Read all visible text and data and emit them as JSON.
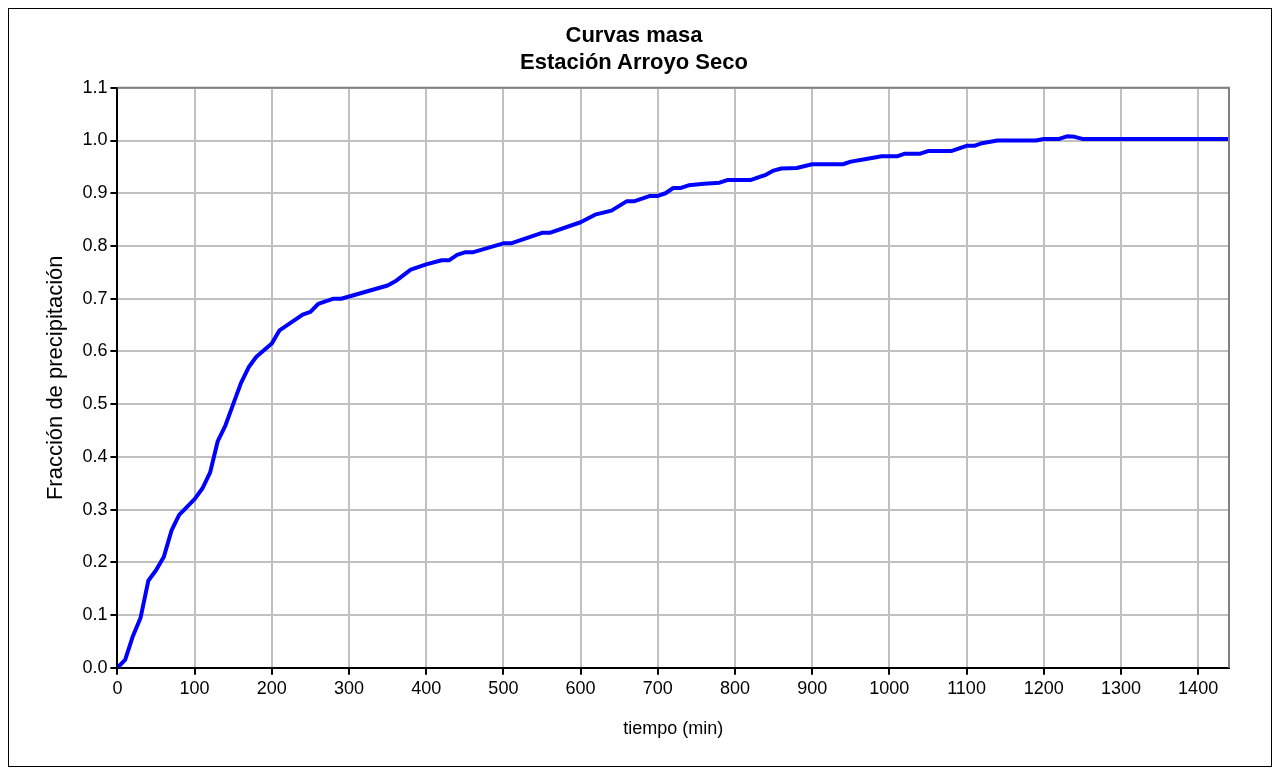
{
  "chart_data": {
    "type": "line",
    "title": [
      "Curvas masa",
      "Estación Arroyo Seco"
    ],
    "xlabel": "tiempo (min)",
    "ylabel": "Fracción de precipitación",
    "x": [
      0,
      10,
      20,
      30,
      40,
      50,
      60,
      70,
      80,
      100,
      110,
      120,
      130,
      140,
      150,
      160,
      170,
      180,
      200,
      210,
      240,
      250,
      260,
      280,
      290,
      350,
      360,
      380,
      400,
      420,
      430,
      440,
      450,
      460,
      500,
      510,
      550,
      560,
      600,
      620,
      640,
      660,
      670,
      690,
      700,
      710,
      720,
      730,
      740,
      760,
      780,
      790,
      820,
      840,
      850,
      860,
      880,
      900,
      940,
      950,
      970,
      990,
      1010,
      1020,
      1040,
      1050,
      1080,
      1100,
      1110,
      1120,
      1140,
      1190,
      1200,
      1220,
      1230,
      1240,
      1250,
      1440
    ],
    "series": [
      {
        "color": "#0000ff",
        "values": [
          0,
          0.015,
          0.06,
          0.095,
          0.165,
          0.185,
          0.21,
          0.26,
          0.29,
          0.32,
          0.34,
          0.37,
          0.43,
          0.46,
          0.5,
          0.54,
          0.57,
          0.59,
          0.615,
          0.64,
          0.67,
          0.675,
          0.69,
          0.7,
          0.7,
          0.725,
          0.733,
          0.755,
          0.765,
          0.773,
          0.773,
          0.783,
          0.788,
          0.788,
          0.805,
          0.805,
          0.825,
          0.825,
          0.845,
          0.86,
          0.867,
          0.885,
          0.885,
          0.895,
          0.895,
          0.9,
          0.91,
          0.91,
          0.915,
          0.918,
          0.92,
          0.925,
          0.925,
          0.935,
          0.943,
          0.947,
          0.948,
          0.955,
          0.955,
          0.96,
          0.965,
          0.97,
          0.97,
          0.975,
          0.975,
          0.98,
          0.98,
          0.99,
          0.99,
          0.995,
          1.0,
          1.0,
          1.003,
          1.003,
          1.008,
          1.007,
          1.003,
          1.003
        ]
      }
    ],
    "xlim": [
      0,
      1440
    ],
    "xticks": [
      0,
      100,
      200,
      300,
      400,
      500,
      600,
      700,
      800,
      900,
      1000,
      1100,
      1200,
      1300,
      1400
    ],
    "ylim": [
      0,
      1.1
    ],
    "yticks": [
      {
        "value": 0,
        "label": "0.0"
      },
      {
        "value": 0.1,
        "label": "0.1"
      },
      {
        "value": 0.2,
        "label": "0.2"
      },
      {
        "value": 0.3,
        "label": "0.3"
      },
      {
        "value": 0.4,
        "label": "0.4"
      },
      {
        "value": 0.5,
        "label": "0.5"
      },
      {
        "value": 0.6,
        "label": "0.6"
      },
      {
        "value": 0.7,
        "label": "0.7"
      },
      {
        "value": 0.8,
        "label": "0.8"
      },
      {
        "value": 0.9,
        "label": "0.9"
      },
      {
        "value": 1,
        "label": "1.0"
      },
      {
        "value": 1.1,
        "label": "1.1"
      }
    ],
    "grid": true,
    "legend": false,
    "marker": "none",
    "line_style": "solid"
  }
}
